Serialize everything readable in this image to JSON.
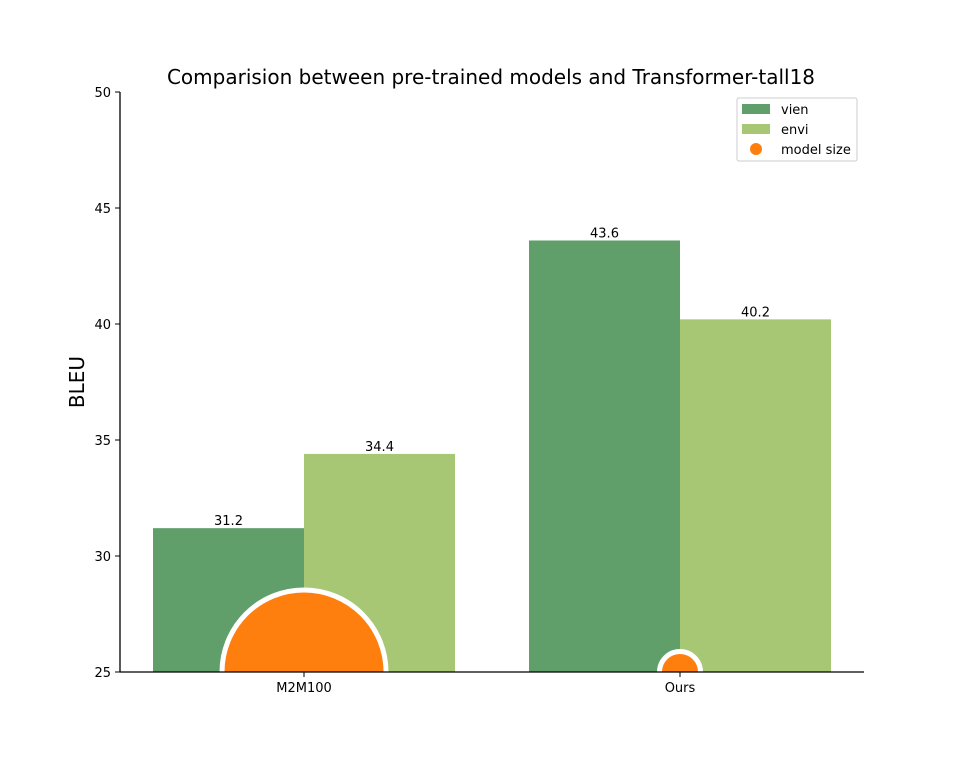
{
  "chart_data": {
    "type": "bar",
    "title": "Comparision between pre-trained models and Transformer-tall18",
    "xlabel": "",
    "ylabel": "BLEU",
    "ylim": [
      25,
      50
    ],
    "yticks": [
      25,
      30,
      35,
      40,
      45,
      50
    ],
    "categories": [
      "M2M100",
      "Ours"
    ],
    "series": [
      {
        "name": "vien",
        "values": [
          31.2,
          43.6
        ],
        "color": "#609f6a"
      },
      {
        "name": "envi",
        "values": [
          34.4,
          40.2
        ],
        "color": "#a7c774"
      }
    ],
    "data_labels": [
      "31.2",
      "43.6",
      "34.4",
      "40.2"
    ],
    "model_size": {
      "name": "model size",
      "color": "#ff7f0e",
      "relative_size": [
        1.0,
        0.25
      ]
    },
    "grid": false,
    "legend_position": "top-right"
  }
}
